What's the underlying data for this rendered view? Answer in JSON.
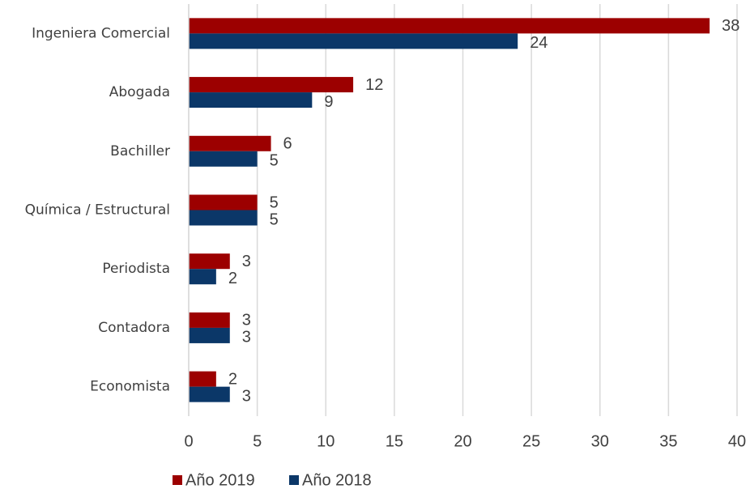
{
  "chart_data": {
    "type": "hbar",
    "categories": [
      "Ingeniera Comercial",
      "Abogada",
      "Bachiller",
      "Química / Estructural",
      "Periodista",
      "Contadora",
      "Economista"
    ],
    "series": [
      {
        "name": "Año 2019",
        "color": "#9c0000",
        "values": [
          38,
          12,
          6,
          5,
          3,
          3,
          2
        ]
      },
      {
        "name": "Año 2018",
        "color": "#0b3768",
        "values": [
          24,
          9,
          5,
          5,
          2,
          3,
          3
        ]
      }
    ],
    "xlim": [
      0,
      40
    ],
    "xticks": [
      0,
      5,
      10,
      15,
      20,
      25,
      30,
      35,
      40
    ],
    "grid": true,
    "legend": "bottom"
  }
}
